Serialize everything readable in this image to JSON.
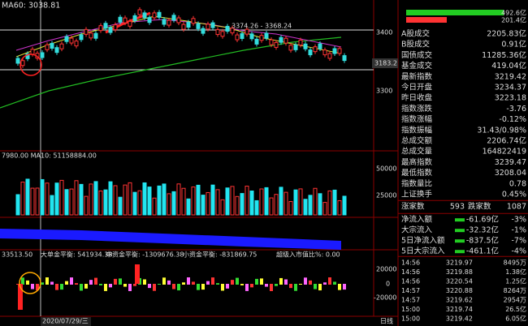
{
  "main_chart": {
    "ma_label": "MA60: 3038.81",
    "range_note": "3374.26 - 3368.24",
    "axis_labels": [
      "3400",
      "3300"
    ],
    "price_tag": "3183.2"
  },
  "volume_chart": {
    "ma_label": "7980.00  MA10: 51158884.00",
    "axis_labels": [
      "50000",
      "25000"
    ]
  },
  "flow_chart": {
    "labels": [
      "33513.50",
      "大单金平衡: 541934.38",
      "中资金平衡: -1309676.38",
      "小资金平衡: -831869.75",
      "超级入市值比%: 0.00"
    ],
    "axis_labels": [
      "20000",
      "0",
      "-20000"
    ]
  },
  "footer": {
    "date": "2020/07/29/三",
    "period": "日线"
  },
  "side_panel": {
    "bars": [
      "492.6亿",
      "201.4亿"
    ],
    "rows": [
      {
        "label": "A股成交",
        "value": "2205.83亿",
        "color": "#ffffff"
      },
      {
        "label": "B股成交",
        "value": "0.91亿",
        "color": "#ffffff"
      },
      {
        "label": "国债成交",
        "value": "11285.36亿",
        "color": "#ffffff"
      },
      {
        "label": "基金成交",
        "value": "419.04亿",
        "color": "#ffffff"
      },
      {
        "label": "最新指数",
        "value": "3219.42",
        "color": "#33dd33"
      },
      {
        "label": "今日开盘",
        "value": "3234.37",
        "color": "#ff4444"
      },
      {
        "label": "昨日收盘",
        "value": "3223.18",
        "color": "#ffffff"
      },
      {
        "label": "指数涨跌",
        "value": "-3.76",
        "color": "#33dd33"
      },
      {
        "label": "指数涨幅",
        "value": "-0.12%",
        "color": "#33dd33"
      },
      {
        "label": "指数振幅",
        "value": "31.43/0.98%",
        "color": "#ffffff"
      },
      {
        "label": "总成交额",
        "value": "2206.74亿",
        "color": "#ffff55"
      },
      {
        "label": "总成交量",
        "value": "164822419",
        "color": "#ffff55"
      },
      {
        "label": "最高指数",
        "value": "3239.47",
        "color": "#ff4444"
      },
      {
        "label": "最低指数",
        "value": "3208.04",
        "color": "#33dd33"
      },
      {
        "label": "指数量比",
        "value": "0.78",
        "color": "#ffffff"
      },
      {
        "label": "上证换手",
        "value": "0.45%",
        "color": "#ffffff"
      }
    ],
    "breadth": {
      "up_label": "涨家数",
      "up": "593",
      "down_label": "跌家数",
      "down": "1087"
    },
    "flows": [
      {
        "label": "净流入额",
        "value": "-61.69亿",
        "pct": "-3%"
      },
      {
        "label": "大宗流入",
        "value": "-32.32亿",
        "pct": "-1%"
      },
      {
        "label": "5日净流入额",
        "value": "-837.5亿",
        "pct": "-7%"
      },
      {
        "label": "5日大宗流入",
        "value": "-461.1亿",
        "pct": "-4%"
      }
    ],
    "trades": [
      [
        "14:56",
        "3219.97",
        "8495万"
      ],
      [
        "14:56",
        "3219.88",
        "1.38亿"
      ],
      [
        "14:56",
        "3220.54",
        "1.25亿"
      ],
      [
        "14:57",
        "3220.88",
        "8264万"
      ],
      [
        "14:57",
        "3219.62",
        "2954万"
      ],
      [
        "15:00",
        "3219.74",
        "26.5亿"
      ],
      [
        "15:00",
        "3219.42",
        "6.05亿"
      ]
    ]
  }
}
